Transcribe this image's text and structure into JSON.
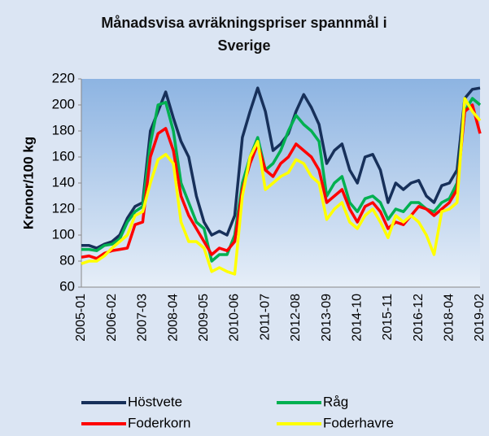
{
  "chart_data": {
    "type": "line",
    "title": "Månadsvisa avräkningspriser spannmål i Sverige",
    "y_label": "Kronor/100 kg",
    "categories": [
      "2005-01",
      null,
      null,
      null,
      "2006-02",
      null,
      null,
      null,
      "2007-03",
      null,
      null,
      null,
      "2008-04",
      null,
      null,
      null,
      "2009-05",
      null,
      null,
      null,
      "2010-06",
      null,
      null,
      null,
      "2011-07",
      null,
      null,
      null,
      "2012-08",
      null,
      null,
      null,
      "2013-09",
      null,
      null,
      null,
      "2014-10",
      null,
      null,
      null,
      "2015-11",
      null,
      null,
      null,
      "2016-12",
      null,
      null,
      null,
      "2018-04",
      null,
      null,
      null,
      "2019-02"
    ],
    "series": [
      {
        "name": "Höstvete",
        "color": "#17305a",
        "values": [
          92,
          92,
          90,
          93,
          95,
          100,
          113,
          122,
          125,
          180,
          195,
          210,
          190,
          172,
          160,
          130,
          110,
          100,
          103,
          100,
          115,
          175,
          195,
          213,
          195,
          165,
          170,
          178,
          195,
          208,
          198,
          185,
          155,
          165,
          170,
          150,
          140,
          160,
          162,
          150,
          125,
          140,
          135,
          140,
          142,
          130,
          125,
          138,
          140,
          150,
          205,
          212,
          213
        ]
      },
      {
        "name": "Råg",
        "color": "#00b050",
        "values": [
          89,
          89,
          88,
          92,
          93,
          97,
          110,
          118,
          122,
          170,
          200,
          202,
          180,
          140,
          125,
          110,
          105,
          80,
          85,
          85,
          100,
          140,
          160,
          175,
          150,
          155,
          165,
          180,
          192,
          185,
          180,
          172,
          130,
          140,
          145,
          125,
          118,
          128,
          130,
          125,
          112,
          120,
          118,
          125,
          125,
          120,
          118,
          125,
          128,
          140,
          195,
          205,
          200
        ]
      },
      {
        "name": "Foderkorn",
        "color": "#ff0000",
        "values": [
          83,
          84,
          82,
          86,
          88,
          89,
          90,
          108,
          110,
          160,
          178,
          182,
          165,
          130,
          115,
          105,
          95,
          85,
          90,
          88,
          95,
          135,
          155,
          170,
          150,
          145,
          155,
          160,
          170,
          165,
          160,
          150,
          125,
          130,
          135,
          120,
          110,
          122,
          125,
          118,
          105,
          110,
          108,
          115,
          122,
          120,
          115,
          120,
          125,
          135,
          195,
          200,
          178
        ]
      },
      {
        "name": "Foderhavre",
        "color": "#ffff00",
        "values": [
          78,
          80,
          80,
          84,
          90,
          95,
          100,
          115,
          118,
          140,
          158,
          162,
          155,
          110,
          95,
          95,
          90,
          72,
          75,
          72,
          70,
          130,
          160,
          172,
          135,
          140,
          145,
          148,
          158,
          155,
          145,
          140,
          112,
          120,
          125,
          110,
          105,
          115,
          120,
          110,
          98,
          115,
          110,
          115,
          110,
          100,
          85,
          118,
          120,
          125,
          205,
          195,
          188
        ]
      }
    ],
    "ylim": [
      60,
      220
    ],
    "yticks": [
      60,
      80,
      100,
      120,
      140,
      160,
      180,
      200,
      220
    ],
    "grid": false,
    "legend": "bottom"
  }
}
